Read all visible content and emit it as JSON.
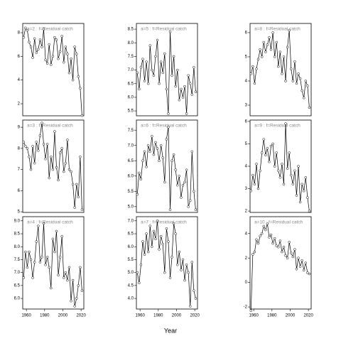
{
  "x_label": "Year",
  "chart_data": [
    {
      "type": "line",
      "title": "a=2 : f=Residual catch",
      "x": [
        1957,
        1959,
        1961,
        1963,
        1965,
        1967,
        1969,
        1971,
        1973,
        1975,
        1977,
        1979,
        1981,
        1983,
        1985,
        1987,
        1989,
        1991,
        1993,
        1995,
        1997,
        1999,
        2001,
        2003,
        2005,
        2007,
        2009,
        2011,
        2013,
        2015,
        2017,
        2019,
        2021
      ],
      "values": [
        7.6,
        8.4,
        8.2,
        7.2,
        6.8,
        5.9,
        7.5,
        6.3,
        6.6,
        7.4,
        6.8,
        8.3,
        5.7,
        5.4,
        7.0,
        5.3,
        6.0,
        7.6,
        7.4,
        5.8,
        6.4,
        7.7,
        5.5,
        6.8,
        6.2,
        4.6,
        5.8,
        4.0,
        6.8,
        6.2,
        4.3,
        3.3,
        1.0
      ],
      "xlim": [
        1956,
        2023
      ],
      "ylim": [
        0.98,
        8.78
      ],
      "yticks": [
        2,
        4,
        6,
        8
      ]
    },
    {
      "type": "line",
      "title": "a=5 : f=Residual catch",
      "x": [
        1957,
        1959,
        1961,
        1963,
        1965,
        1967,
        1969,
        1971,
        1973,
        1975,
        1977,
        1979,
        1981,
        1983,
        1985,
        1987,
        1989,
        1991,
        1993,
        1995,
        1997,
        1999,
        2001,
        2003,
        2005,
        2007,
        2009,
        2011,
        2013,
        2015,
        2017,
        2019,
        2021
      ],
      "values": [
        6.9,
        6.3,
        7.1,
        7.4,
        6.6,
        7.3,
        6.5,
        7.9,
        7.0,
        6.8,
        7.5,
        8.1,
        6.5,
        7.3,
        6.9,
        7.6,
        6.3,
        5.4,
        8.4,
        6.8,
        7.5,
        6.4,
        7.0,
        5.9,
        6.3,
        6.0,
        6.4,
        5.4,
        6.8,
        6.5,
        6.1,
        7.1,
        6.2
      ],
      "xlim": [
        1956,
        2023
      ],
      "ylim": [
        5.32,
        8.71
      ],
      "yticks": [
        5.5,
        {
          "value": 6,
          "label": "6.0"
        },
        6.5,
        {
          "value": 7,
          "label": "7.0"
        },
        7.5,
        {
          "value": 8,
          "label": "8.0"
        },
        8.5
      ]
    },
    {
      "type": "line",
      "title": "a=8 : f=Residual catch",
      "x": [
        1957,
        1959,
        1961,
        1963,
        1965,
        1967,
        1969,
        1971,
        1973,
        1975,
        1977,
        1979,
        1981,
        1983,
        1985,
        1987,
        1989,
        1991,
        1993,
        1995,
        1997,
        1999,
        2001,
        2003,
        2005,
        2007,
        2009,
        2011,
        2013,
        2015,
        2017,
        2019,
        2021
      ],
      "values": [
        4.3,
        4.6,
        3.9,
        4.5,
        4.9,
        5.3,
        5.0,
        5.6,
        5.2,
        5.5,
        5.8,
        5.3,
        6.0,
        5.0,
        5.6,
        4.6,
        5.2,
        4.3,
        5.0,
        4.0,
        5.4,
        6.1,
        4.5,
        4.0,
        4.8,
        3.9,
        4.3,
        4.1,
        3.6,
        3.3,
        4.0,
        3.8,
        2.9
      ],
      "xlim": [
        1956,
        2023
      ],
      "ylim": [
        2.56,
        6.38
      ],
      "yticks": [
        3,
        4,
        5,
        6
      ]
    },
    {
      "type": "line",
      "title": "a=3 : f=Residual catch",
      "x": [
        1957,
        1959,
        1961,
        1963,
        1965,
        1967,
        1969,
        1971,
        1973,
        1975,
        1977,
        1979,
        1981,
        1983,
        1985,
        1987,
        1989,
        1991,
        1993,
        1995,
        1997,
        1999,
        2001,
        2003,
        2005,
        2007,
        2009,
        2011,
        2013,
        2015,
        2017,
        2019,
        2021
      ],
      "values": [
        8.3,
        8.1,
        8.0,
        7.6,
        7.0,
        8.1,
        7.3,
        8.3,
        7.9,
        8.6,
        9.2,
        8.2,
        7.5,
        8.2,
        6.6,
        7.6,
        7.0,
        8.8,
        7.1,
        6.5,
        7.8,
        8.0,
        6.9,
        7.3,
        8.4,
        7.0,
        6.9,
        6.3,
        5.2,
        6.3,
        5.7,
        7.6,
        5.1
      ],
      "xlim": [
        1956,
        2023
      ],
      "ylim": [
        4.97,
        9.34
      ],
      "yticks": [
        5,
        6,
        7,
        8,
        9
      ]
    },
    {
      "type": "line",
      "title": "a=6 : f=Residual catch",
      "x": [
        1957,
        1959,
        1961,
        1963,
        1965,
        1967,
        1969,
        1971,
        1973,
        1975,
        1977,
        1979,
        1981,
        1983,
        1985,
        1987,
        1989,
        1991,
        1993,
        1995,
        1997,
        1999,
        2001,
        2003,
        2005,
        2007,
        2009,
        2011,
        2013,
        2015,
        2017,
        2019,
        2021
      ],
      "values": [
        5.4,
        6.1,
        5.9,
        6.5,
        6.8,
        6.3,
        7.0,
        6.8,
        7.3,
        6.7,
        7.1,
        6.9,
        6.5,
        7.0,
        6.6,
        5.8,
        7.2,
        7.6,
        4.9,
        6.5,
        6.7,
        6.2,
        5.7,
        6.0,
        5.3,
        5.7,
        5.8,
        6.2,
        5.0,
        5.2,
        6.8,
        5.5,
        4.9
      ],
      "xlim": [
        1956,
        2023
      ],
      "ylim": [
        4.81,
        7.83
      ],
      "yticks": [
        {
          "value": 5,
          "label": "5.0"
        },
        5.5,
        {
          "value": 6,
          "label": "6.0"
        },
        6.5,
        {
          "value": 7,
          "label": "7.0"
        },
        7.5
      ]
    },
    {
      "type": "line",
      "title": "a=9 : f=Residual catch",
      "x": [
        1957,
        1959,
        1961,
        1963,
        1965,
        1967,
        1969,
        1971,
        1973,
        1975,
        1977,
        1979,
        1981,
        1983,
        1985,
        1987,
        1989,
        1991,
        1993,
        1995,
        1997,
        1999,
        2001,
        2003,
        2005,
        2007,
        2009,
        2011,
        2013,
        2015,
        2017,
        2019,
        2021
      ],
      "values": [
        2.9,
        3.6,
        3.2,
        4.1,
        3.0,
        3.8,
        4.6,
        5.2,
        4.5,
        4.8,
        4.2,
        4.9,
        5.0,
        4.0,
        4.6,
        3.8,
        3.5,
        4.1,
        3.2,
        5.9,
        3.9,
        4.6,
        3.6,
        3.2,
        3.8,
        2.7,
        4.0,
        2.4,
        3.2,
        2.9,
        3.5,
        2.6,
        2.0
      ],
      "xlim": [
        1956,
        2023
      ],
      "ylim": [
        1.94,
        6.06
      ],
      "yticks": [
        2,
        3,
        4,
        5,
        6
      ]
    },
    {
      "type": "line",
      "title": "a=4 : f=Residual catch",
      "x": [
        1957,
        1959,
        1961,
        1963,
        1965,
        1967,
        1969,
        1971,
        1973,
        1975,
        1977,
        1979,
        1981,
        1983,
        1985,
        1987,
        1989,
        1991,
        1993,
        1995,
        1997,
        1999,
        2001,
        2003,
        2005,
        2007,
        2009,
        2011,
        2013,
        2015,
        2017,
        2019,
        2021
      ],
      "values": [
        6.8,
        7.8,
        7.2,
        7.8,
        7.5,
        6.8,
        7.4,
        8.2,
        8.8,
        7.4,
        7.6,
        8.9,
        7.3,
        7.6,
        7.2,
        6.4,
        8.3,
        7.8,
        8.6,
        6.9,
        7.6,
        8.4,
        6.8,
        7.0,
        6.7,
        7.2,
        5.9,
        6.7,
        5.7,
        6.0,
        6.5,
        7.2,
        6.3
      ],
      "xlim": [
        1956,
        2023
      ],
      "ylim": [
        5.59,
        9.16
      ],
      "yticks": [
        {
          "value": 6,
          "label": "6.0"
        },
        6.5,
        {
          "value": 7,
          "label": "7.0"
        },
        7.5,
        {
          "value": 8,
          "label": "8.0"
        },
        8.5,
        {
          "value": 9,
          "label": "9.0"
        }
      ],
      "xticks": [
        1960,
        1980,
        2000,
        2020
      ]
    },
    {
      "type": "line",
      "title": "a=7 : f=Residual catch",
      "x": [
        1957,
        1959,
        1961,
        1963,
        1965,
        1967,
        1969,
        1971,
        1973,
        1975,
        1977,
        1979,
        1981,
        1983,
        1985,
        1987,
        1989,
        1991,
        1993,
        1995,
        1997,
        1999,
        2001,
        2003,
        2005,
        2007,
        2009,
        2011,
        2013,
        2015,
        2017,
        2019,
        2021
      ],
      "values": [
        5.0,
        4.6,
        5.3,
        6.2,
        5.7,
        6.5,
        5.8,
        6.8,
        6.0,
        6.6,
        6.3,
        7.0,
        5.9,
        6.4,
        6.1,
        5.0,
        6.7,
        6.2,
        4.8,
        5.6,
        6.9,
        6.5,
        5.3,
        5.8,
        5.1,
        5.5,
        4.7,
        5.3,
        5.0,
        3.7,
        5.4,
        4.3,
        4.0
      ],
      "xlim": [
        1956,
        2023
      ],
      "ylim": [
        3.59,
        7.16
      ],
      "yticks": [
        {
          "value": 4,
          "label": "4.0"
        },
        4.5,
        {
          "value": 5,
          "label": "5.0"
        },
        5.5,
        {
          "value": 6,
          "label": "6.0"
        },
        6.5,
        {
          "value": 7,
          "label": "7.0"
        }
      ],
      "xticks": [
        1960,
        1980,
        2000,
        2020
      ]
    },
    {
      "type": "line",
      "title": "a=10 : f=Residual catch",
      "x": [
        1957,
        1959,
        1961,
        1963,
        1965,
        1967,
        1969,
        1971,
        1973,
        1975,
        1977,
        1979,
        1981,
        1983,
        1985,
        1987,
        1989,
        1991,
        1993,
        1995,
        1997,
        1999,
        2001,
        2003,
        2005,
        2007,
        2009,
        2011,
        2013,
        2015,
        2017,
        2019,
        2021
      ],
      "values": [
        -2.3,
        2.3,
        2.5,
        3.5,
        3.2,
        3.8,
        4.0,
        4.6,
        4.3,
        4.8,
        3.7,
        3.9,
        3.2,
        3.6,
        3.0,
        2.9,
        3.4,
        2.5,
        2.9,
        2.2,
        2.0,
        3.3,
        2.4,
        2.1,
        2.7,
        1.1,
        2.0,
        1.3,
        1.8,
        1.0,
        1.6,
        0.8,
        0.7
      ],
      "xlim": [
        1956,
        2023
      ],
      "ylim": [
        -2.17,
        5.38
      ],
      "yticks": [
        -2,
        0,
        2,
        4
      ],
      "xticks": [
        1960,
        1980,
        2000,
        2020
      ]
    }
  ]
}
